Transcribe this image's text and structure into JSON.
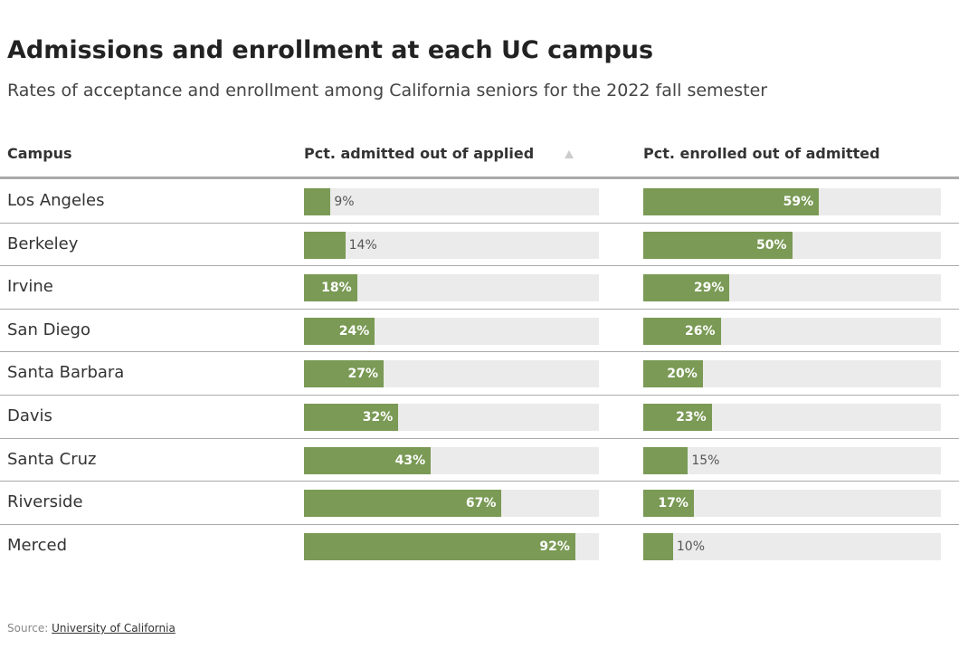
{
  "header": {
    "title": "Admissions and enrollment at each UC campus",
    "subtitle": "Rates of acceptance and enrollment among California seniors for the 2022 fall semester"
  },
  "table": {
    "columns": [
      "Campus",
      "Pct. admitted out of applied",
      "Pct. enrolled out of admitted"
    ],
    "xlim": [
      0,
      100
    ],
    "color": "#7a9a55",
    "track_color": "#ebebeb",
    "rows": [
      {
        "campus": "Los Angeles",
        "admitted": 9,
        "admitted_label": "9%",
        "enrolled": 59,
        "enrolled_label": "59%"
      },
      {
        "campus": "Berkeley",
        "admitted": 14,
        "admitted_label": "14%",
        "enrolled": 50,
        "enrolled_label": "50%"
      },
      {
        "campus": "Irvine",
        "admitted": 18,
        "admitted_label": "18%",
        "enrolled": 29,
        "enrolled_label": "29%"
      },
      {
        "campus": "San Diego",
        "admitted": 24,
        "admitted_label": "24%",
        "enrolled": 26,
        "enrolled_label": "26%"
      },
      {
        "campus": "Santa Barbara",
        "admitted": 27,
        "admitted_label": "27%",
        "enrolled": 20,
        "enrolled_label": "20%"
      },
      {
        "campus": "Davis",
        "admitted": 32,
        "admitted_label": "32%",
        "enrolled": 23,
        "enrolled_label": "23%"
      },
      {
        "campus": "Santa Cruz",
        "admitted": 43,
        "admitted_label": "43%",
        "enrolled": 15,
        "enrolled_label": "15%"
      },
      {
        "campus": "Riverside",
        "admitted": 67,
        "admitted_label": "67%",
        "enrolled": 17,
        "enrolled_label": "17%"
      },
      {
        "campus": "Merced",
        "admitted": 92,
        "admitted_label": "92%",
        "enrolled": 10,
        "enrolled_label": "10%"
      }
    ]
  },
  "footer": {
    "source_label": "Source:",
    "source_link": "University of California"
  }
}
